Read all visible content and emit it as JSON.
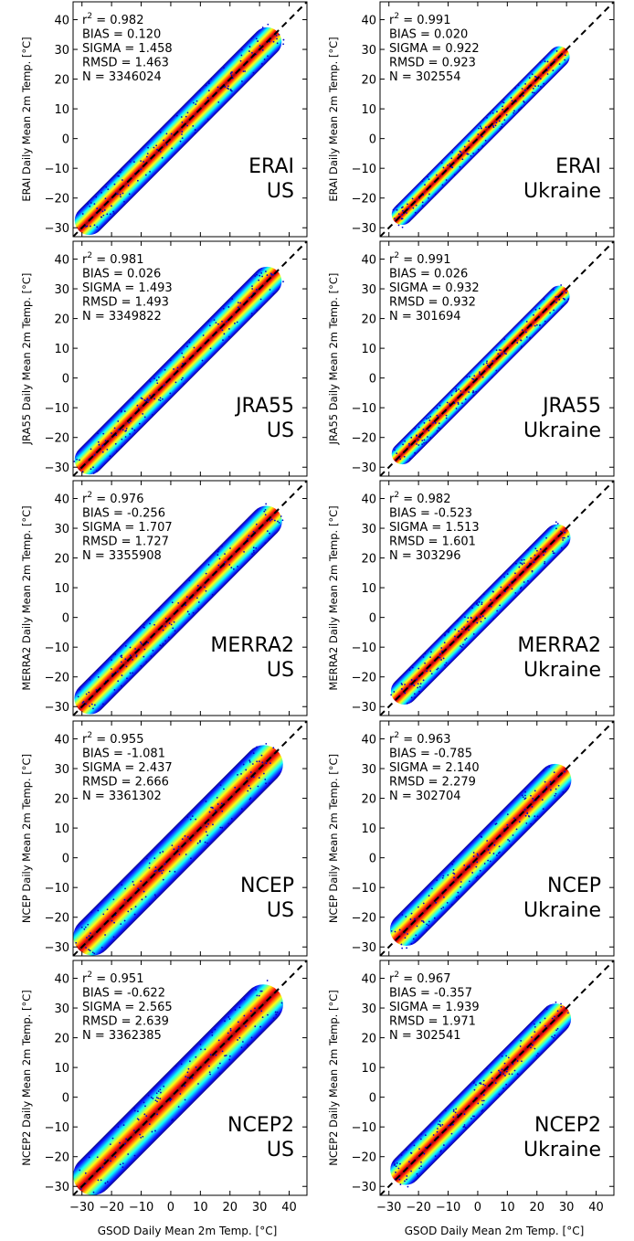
{
  "figure": {
    "x_axis_label": "GSOD Daily Mean 2m Temp. [°C]",
    "tick_values": [
      -30,
      -20,
      -10,
      0,
      10,
      20,
      30,
      40
    ],
    "axis_range": [
      -33,
      46
    ],
    "identity_line_color": "#000000",
    "density_colormap": [
      "#00007f",
      "#0000ff",
      "#0080ff",
      "#00ffff",
      "#80ff80",
      "#ffff00",
      "#ff8000",
      "#ff0000",
      "#7f0000"
    ]
  },
  "chart_data": [
    {
      "type": "scatter",
      "row": 0,
      "col": 0,
      "dataset": "ERAI",
      "region": "US",
      "ylabel": "ERAI Daily Mean 2m Temp. [°C]",
      "xlabel": "GSOD Daily Mean 2m Temp. [°C]",
      "xlim": [
        -33,
        46
      ],
      "ylim": [
        -33,
        46
      ],
      "density": "kernel-density colored scatter",
      "identity_line": true,
      "stats": {
        "r2": "0.982",
        "bias": "0.120",
        "sigma": "1.458",
        "rmsd": "1.463",
        "n": "3346024"
      }
    },
    {
      "type": "scatter",
      "row": 0,
      "col": 1,
      "dataset": "ERAI",
      "region": "Ukraine",
      "ylabel": "ERAI Daily Mean 2m Temp. [°C]",
      "xlabel": "GSOD Daily Mean 2m Temp. [°C]",
      "xlim": [
        -33,
        46
      ],
      "ylim": [
        -33,
        46
      ],
      "density": "kernel-density colored scatter",
      "identity_line": true,
      "stats": {
        "r2": "0.991",
        "bias": "0.020",
        "sigma": "0.922",
        "rmsd": "0.923",
        "n": "302554"
      }
    },
    {
      "type": "scatter",
      "row": 1,
      "col": 0,
      "dataset": "JRA55",
      "region": "US",
      "ylabel": "JRA55 Daily Mean 2m Temp. [°C]",
      "xlabel": "GSOD Daily Mean 2m Temp. [°C]",
      "xlim": [
        -33,
        46
      ],
      "ylim": [
        -33,
        46
      ],
      "density": "kernel-density colored scatter",
      "identity_line": true,
      "stats": {
        "r2": "0.981",
        "bias": "0.026",
        "sigma": "1.493",
        "rmsd": "1.493",
        "n": "3349822"
      }
    },
    {
      "type": "scatter",
      "row": 1,
      "col": 1,
      "dataset": "JRA55",
      "region": "Ukraine",
      "ylabel": "JRA55 Daily Mean 2m Temp. [°C]",
      "xlabel": "GSOD Daily Mean 2m Temp. [°C]",
      "xlim": [
        -33,
        46
      ],
      "ylim": [
        -33,
        46
      ],
      "density": "kernel-density colored scatter",
      "identity_line": true,
      "stats": {
        "r2": "0.991",
        "bias": "0.026",
        "sigma": "0.932",
        "rmsd": "0.932",
        "n": "301694"
      }
    },
    {
      "type": "scatter",
      "row": 2,
      "col": 0,
      "dataset": "MERRA2",
      "region": "US",
      "ylabel": "MERRA2 Daily Mean 2m Temp. [°C]",
      "xlabel": "GSOD Daily Mean 2m Temp. [°C]",
      "xlim": [
        -33,
        46
      ],
      "ylim": [
        -33,
        46
      ],
      "density": "kernel-density colored scatter",
      "identity_line": true,
      "stats": {
        "r2": "0.976",
        "bias": "-0.256",
        "sigma": "1.707",
        "rmsd": "1.727",
        "n": "3355908"
      }
    },
    {
      "type": "scatter",
      "row": 2,
      "col": 1,
      "dataset": "MERRA2",
      "region": "Ukraine",
      "ylabel": "MERRA2 Daily Mean 2m Temp. [°C]",
      "xlabel": "GSOD Daily Mean 2m Temp. [°C]",
      "xlim": [
        -33,
        46
      ],
      "ylim": [
        -33,
        46
      ],
      "density": "kernel-density colored scatter",
      "identity_line": true,
      "stats": {
        "r2": "0.982",
        "bias": "-0.523",
        "sigma": "1.513",
        "rmsd": "1.601",
        "n": "303296"
      }
    },
    {
      "type": "scatter",
      "row": 3,
      "col": 0,
      "dataset": "NCEP",
      "region": "US",
      "ylabel": "NCEP Daily Mean 2m Temp. [°C]",
      "xlabel": "GSOD Daily Mean 2m Temp. [°C]",
      "xlim": [
        -33,
        46
      ],
      "ylim": [
        -33,
        46
      ],
      "density": "kernel-density colored scatter",
      "identity_line": true,
      "stats": {
        "r2": "0.955",
        "bias": "-1.081",
        "sigma": "2.437",
        "rmsd": "2.666",
        "n": "3361302"
      }
    },
    {
      "type": "scatter",
      "row": 3,
      "col": 1,
      "dataset": "NCEP",
      "region": "Ukraine",
      "ylabel": "NCEP Daily Mean 2m Temp. [°C]",
      "xlabel": "GSOD Daily Mean 2m Temp. [°C]",
      "xlim": [
        -33,
        46
      ],
      "ylim": [
        -33,
        46
      ],
      "density": "kernel-density colored scatter",
      "identity_line": true,
      "stats": {
        "r2": "0.963",
        "bias": "-0.785",
        "sigma": "2.140",
        "rmsd": "2.279",
        "n": "302704"
      }
    },
    {
      "type": "scatter",
      "row": 4,
      "col": 0,
      "dataset": "NCEP2",
      "region": "US",
      "ylabel": "NCEP2 Daily Mean 2m Temp. [°C]",
      "xlabel": "GSOD Daily Mean 2m Temp. [°C]",
      "xlim": [
        -33,
        46
      ],
      "ylim": [
        -33,
        46
      ],
      "density": "kernel-density colored scatter",
      "identity_line": true,
      "stats": {
        "r2": "0.951",
        "bias": "-0.622",
        "sigma": "2.565",
        "rmsd": "2.639",
        "n": "3362385"
      }
    },
    {
      "type": "scatter",
      "row": 4,
      "col": 1,
      "dataset": "NCEP2",
      "region": "Ukraine",
      "ylabel": "NCEP2 Daily Mean 2m Temp. [°C]",
      "xlabel": "GSOD Daily Mean 2m Temp. [°C]",
      "xlim": [
        -33,
        46
      ],
      "ylim": [
        -33,
        46
      ],
      "density": "kernel-density colored scatter",
      "identity_line": true,
      "stats": {
        "r2": "0.967",
        "bias": "-0.357",
        "sigma": "1.939",
        "rmsd": "1.971",
        "n": "302541"
      }
    }
  ]
}
